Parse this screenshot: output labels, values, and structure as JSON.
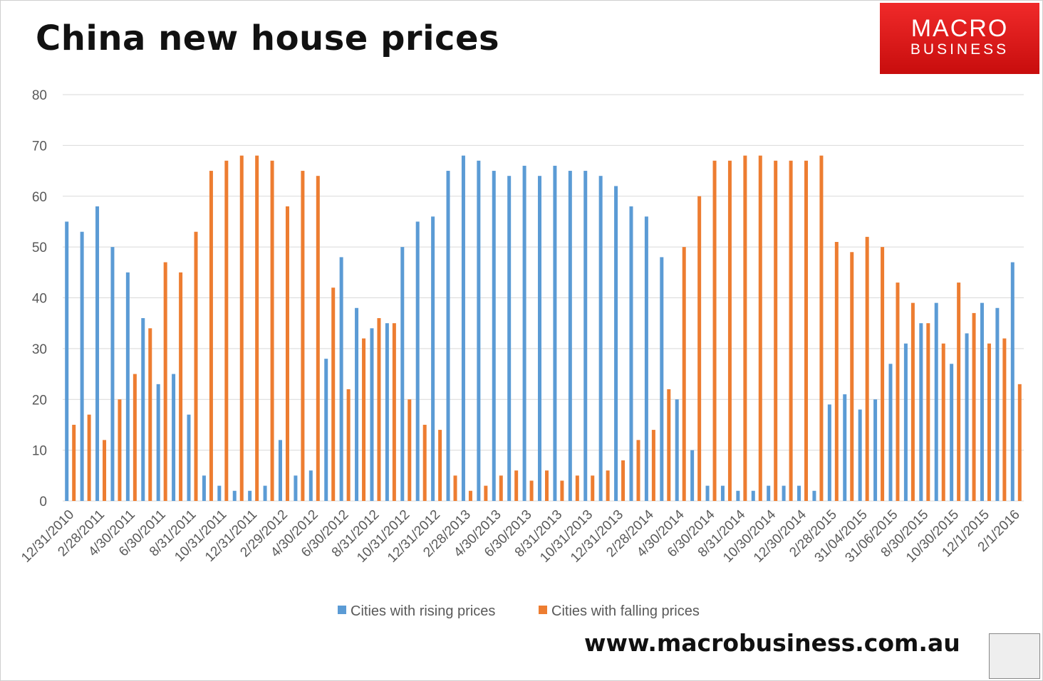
{
  "header": {
    "title": "China new house prices",
    "logo_line1": "MACRO",
    "logo_line2": "BUSINESS"
  },
  "footer": {
    "website": "www.macrobusiness.com.au"
  },
  "colors": {
    "rising": "#5b9bd5",
    "falling": "#ed7d31",
    "grid": "#d9d9d9",
    "logo": "#e21b1b"
  },
  "chart_data": {
    "type": "bar",
    "title": "China new house prices",
    "ylim": [
      0,
      80
    ],
    "yticks": [
      0,
      10,
      20,
      30,
      40,
      50,
      60,
      70,
      80
    ],
    "grid": true,
    "legend_position": "bottom",
    "x_tick_labels": [
      "12/31/2010",
      "2/28/2011",
      "4/30/2011",
      "6/30/2011",
      "8/31/2011",
      "10/31/2011",
      "12/31/2011",
      "2/29/2012",
      "4/30/2012",
      "6/30/2012",
      "8/31/2012",
      "10/31/2012",
      "12/31/2012",
      "2/28/2013",
      "4/30/2013",
      "6/30/2013",
      "8/31/2013",
      "10/31/2013",
      "12/31/2013",
      "2/28/2014",
      "4/30/2014",
      "6/30/2014",
      "8/31/2014",
      "10/30/2014",
      "12/30/2014",
      "2/28/2015",
      "31/04/2015",
      "31/06/2015",
      "8/30/2015",
      "10/30/2015",
      "12/1/2015",
      "2/1/2016"
    ],
    "series": [
      {
        "name": "Cities with rising prices",
        "color": "#5b9bd5",
        "values": [
          55,
          53,
          58,
          50,
          45,
          36,
          23,
          25,
          17,
          5,
          3,
          2,
          2,
          3,
          12,
          5,
          6,
          28,
          48,
          38,
          34,
          35,
          50,
          55,
          56,
          65,
          68,
          67,
          65,
          64,
          66,
          64,
          66,
          65,
          65,
          64,
          62,
          58,
          56,
          48,
          20,
          10,
          3,
          3,
          2,
          2,
          3,
          3,
          3,
          2,
          19,
          21,
          18,
          20,
          27,
          31,
          35,
          39,
          27,
          33,
          39,
          38,
          47
        ]
      },
      {
        "name": "Cities with falling prices",
        "color": "#ed7d31",
        "values": [
          15,
          17,
          12,
          20,
          25,
          34,
          47,
          45,
          53,
          65,
          67,
          68,
          68,
          67,
          58,
          65,
          64,
          42,
          22,
          32,
          36,
          35,
          20,
          15,
          14,
          5,
          2,
          3,
          5,
          6,
          4,
          6,
          4,
          5,
          5,
          6,
          8,
          12,
          14,
          22,
          50,
          60,
          67,
          67,
          68,
          68,
          67,
          67,
          67,
          68,
          51,
          49,
          52,
          50,
          43,
          39,
          35,
          31,
          43,
          37,
          31,
          32,
          23
        ]
      }
    ]
  }
}
